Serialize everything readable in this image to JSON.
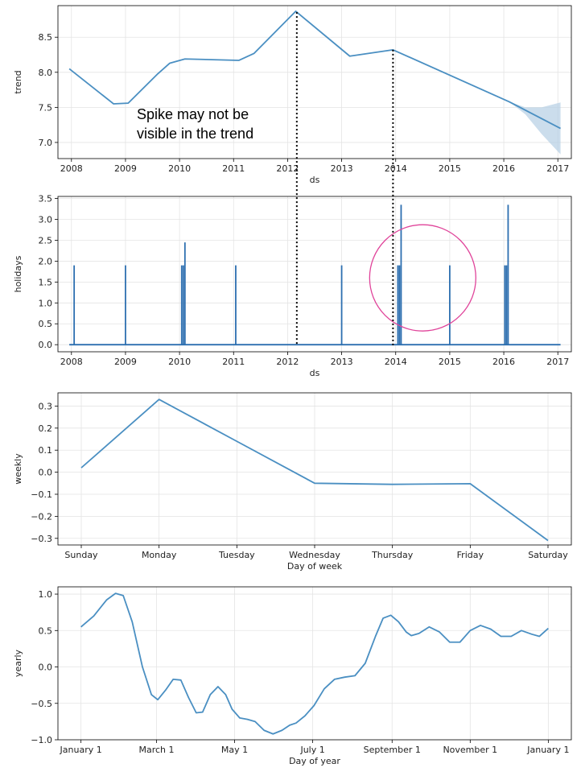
{
  "chart_data": [
    {
      "type": "line",
      "ylabel": "trend",
      "xlabel": "ds",
      "xlim": [
        2007.75,
        2017.25
      ],
      "ylim": [
        6.77,
        8.95
      ],
      "x_ticks": [
        2008,
        2009,
        2010,
        2011,
        2012,
        2013,
        2014,
        2015,
        2016,
        2017
      ],
      "x_tick_labels": [
        "2008",
        "2009",
        "2010",
        "2011",
        "2012",
        "2013",
        "2014",
        "2015",
        "2016",
        "2017"
      ],
      "y_ticks": [
        7.0,
        7.5,
        8.0,
        8.5
      ],
      "y_tick_labels": [
        "7.0",
        "7.5",
        "8.0",
        "8.5"
      ],
      "grid": true,
      "line_color": "#4a8fc2",
      "series": [
        {
          "x": [
            2007.96,
            2008.78,
            2009.05,
            2009.6,
            2009.82,
            2010.1,
            2011.1,
            2011.38,
            2012.15,
            2013.15,
            2013.95,
            2016.1,
            2017.05
          ],
          "y": [
            8.05,
            7.55,
            7.56,
            7.98,
            8.13,
            8.19,
            8.17,
            8.27,
            8.87,
            8.23,
            8.32,
            7.58,
            7.2
          ]
        }
      ],
      "uncertainty_band": {
        "color": "#b5cfe4",
        "x": [
          2016.1,
          2016.4,
          2016.7,
          2017.05
        ],
        "upper": [
          7.58,
          7.5,
          7.5,
          7.57
        ],
        "lower": [
          7.58,
          7.4,
          7.12,
          6.83
        ]
      },
      "annotation": [
        "Spike may not be",
        "visible in the trend"
      ],
      "markers_x": [
        2012.17,
        2013.95
      ]
    },
    {
      "type": "line",
      "ylabel": "holidays",
      "xlabel": "ds",
      "xlim": [
        2007.75,
        2017.25
      ],
      "ylim": [
        -0.17,
        3.55
      ],
      "x_ticks": [
        2008,
        2009,
        2010,
        2011,
        2012,
        2013,
        2014,
        2015,
        2016,
        2017
      ],
      "x_tick_labels": [
        "2008",
        "2009",
        "2010",
        "2011",
        "2012",
        "2013",
        "2014",
        "2015",
        "2016",
        "2017"
      ],
      "y_ticks": [
        0.0,
        0.5,
        1.0,
        1.5,
        2.0,
        2.5,
        3.0,
        3.5
      ],
      "y_tick_labels": [
        "0.0",
        "0.5",
        "1.0",
        "1.5",
        "2.0",
        "2.5",
        "3.0",
        "3.5"
      ],
      "grid": true,
      "line_color": "#2d6fb0",
      "baseline_range": [
        2007.96,
        2017.05
      ],
      "spikes": [
        {
          "x": 2008.05,
          "y": 1.9
        },
        {
          "x": 2009.0,
          "y": 1.9
        },
        {
          "x": 2010.04,
          "y": 1.9
        },
        {
          "x": 2010.07,
          "y": 1.9
        },
        {
          "x": 2010.1,
          "y": 2.45
        },
        {
          "x": 2011.04,
          "y": 1.9
        },
        {
          "x": 2013.0,
          "y": 1.9
        },
        {
          "x": 2014.04,
          "y": 1.9
        },
        {
          "x": 2014.07,
          "y": 1.9
        },
        {
          "x": 2014.1,
          "y": 3.35
        },
        {
          "x": 2015.0,
          "y": 1.9
        },
        {
          "x": 2016.02,
          "y": 1.9
        },
        {
          "x": 2016.05,
          "y": 1.9
        },
        {
          "x": 2016.08,
          "y": 3.35
        }
      ],
      "highlight_circle": {
        "cx": 2014.5,
        "cy": 1.6,
        "color": "#e0449a"
      },
      "markers_x": [
        2012.17,
        2013.95
      ]
    },
    {
      "type": "line",
      "ylabel": "weekly",
      "xlabel": "Day of week",
      "xlim": [
        -0.3,
        6.3
      ],
      "ylim": [
        -0.33,
        0.36
      ],
      "x_ticks": [
        0,
        1,
        2,
        3,
        4,
        5,
        6
      ],
      "x_tick_labels": [
        "Sunday",
        "Monday",
        "Tuesday",
        "Wednesday",
        "Thursday",
        "Friday",
        "Saturday"
      ],
      "y_ticks": [
        -0.3,
        -0.2,
        -0.1,
        0.0,
        0.1,
        0.2,
        0.3
      ],
      "y_tick_labels": [
        "−0.3",
        "−0.2",
        "−0.1",
        "0.0",
        "0.1",
        "0.2",
        "0.3"
      ],
      "grid": true,
      "line_color": "#4a8fc2",
      "series": [
        {
          "x": [
            0,
            1,
            2,
            3,
            4,
            5,
            6
          ],
          "y": [
            0.02,
            0.33,
            0.14,
            -0.05,
            -0.055,
            -0.052,
            -0.31
          ]
        }
      ]
    },
    {
      "type": "line",
      "ylabel": "yearly",
      "xlabel": "Day of year",
      "xlim": [
        -18,
        383
      ],
      "ylim": [
        -1.0,
        1.1
      ],
      "x_ticks": [
        0,
        59,
        120,
        181,
        243,
        304,
        365
      ],
      "x_tick_labels": [
        "January 1",
        "March 1",
        "May 1",
        "July 1",
        "September 1",
        "November 1",
        "January 1"
      ],
      "y_ticks": [
        -1.0,
        -0.5,
        0.0,
        0.5,
        1.0
      ],
      "y_tick_labels": [
        "−1.0",
        "−0.5",
        "0.0",
        "0.5",
        "1.0"
      ],
      "grid": true,
      "line_color": "#4a8fc2",
      "series": [
        {
          "x": [
            0,
            10,
            20,
            27,
            33,
            40,
            48,
            55,
            60,
            66,
            72,
            78,
            84,
            90,
            95,
            101,
            107,
            113,
            118,
            124,
            130,
            136,
            143,
            150,
            157,
            163,
            168,
            175,
            182,
            190,
            198,
            206,
            214,
            222,
            230,
            236,
            242,
            248,
            254,
            258,
            264,
            272,
            280,
            288,
            296,
            304,
            312,
            320,
            328,
            336,
            344,
            352,
            358,
            365
          ],
          "y": [
            0.55,
            0.7,
            0.92,
            1.01,
            0.98,
            0.62,
            0.0,
            -0.38,
            -0.45,
            -0.32,
            -0.17,
            -0.18,
            -0.42,
            -0.63,
            -0.62,
            -0.38,
            -0.27,
            -0.38,
            -0.58,
            -0.7,
            -0.72,
            -0.75,
            -0.87,
            -0.92,
            -0.87,
            -0.8,
            -0.77,
            -0.67,
            -0.53,
            -0.3,
            -0.17,
            -0.14,
            -0.12,
            0.05,
            0.42,
            0.67,
            0.71,
            0.62,
            0.48,
            0.43,
            0.46,
            0.55,
            0.48,
            0.34,
            0.34,
            0.5,
            0.57,
            0.52,
            0.42,
            0.42,
            0.5,
            0.45,
            0.42,
            0.53
          ]
        }
      ]
    }
  ]
}
